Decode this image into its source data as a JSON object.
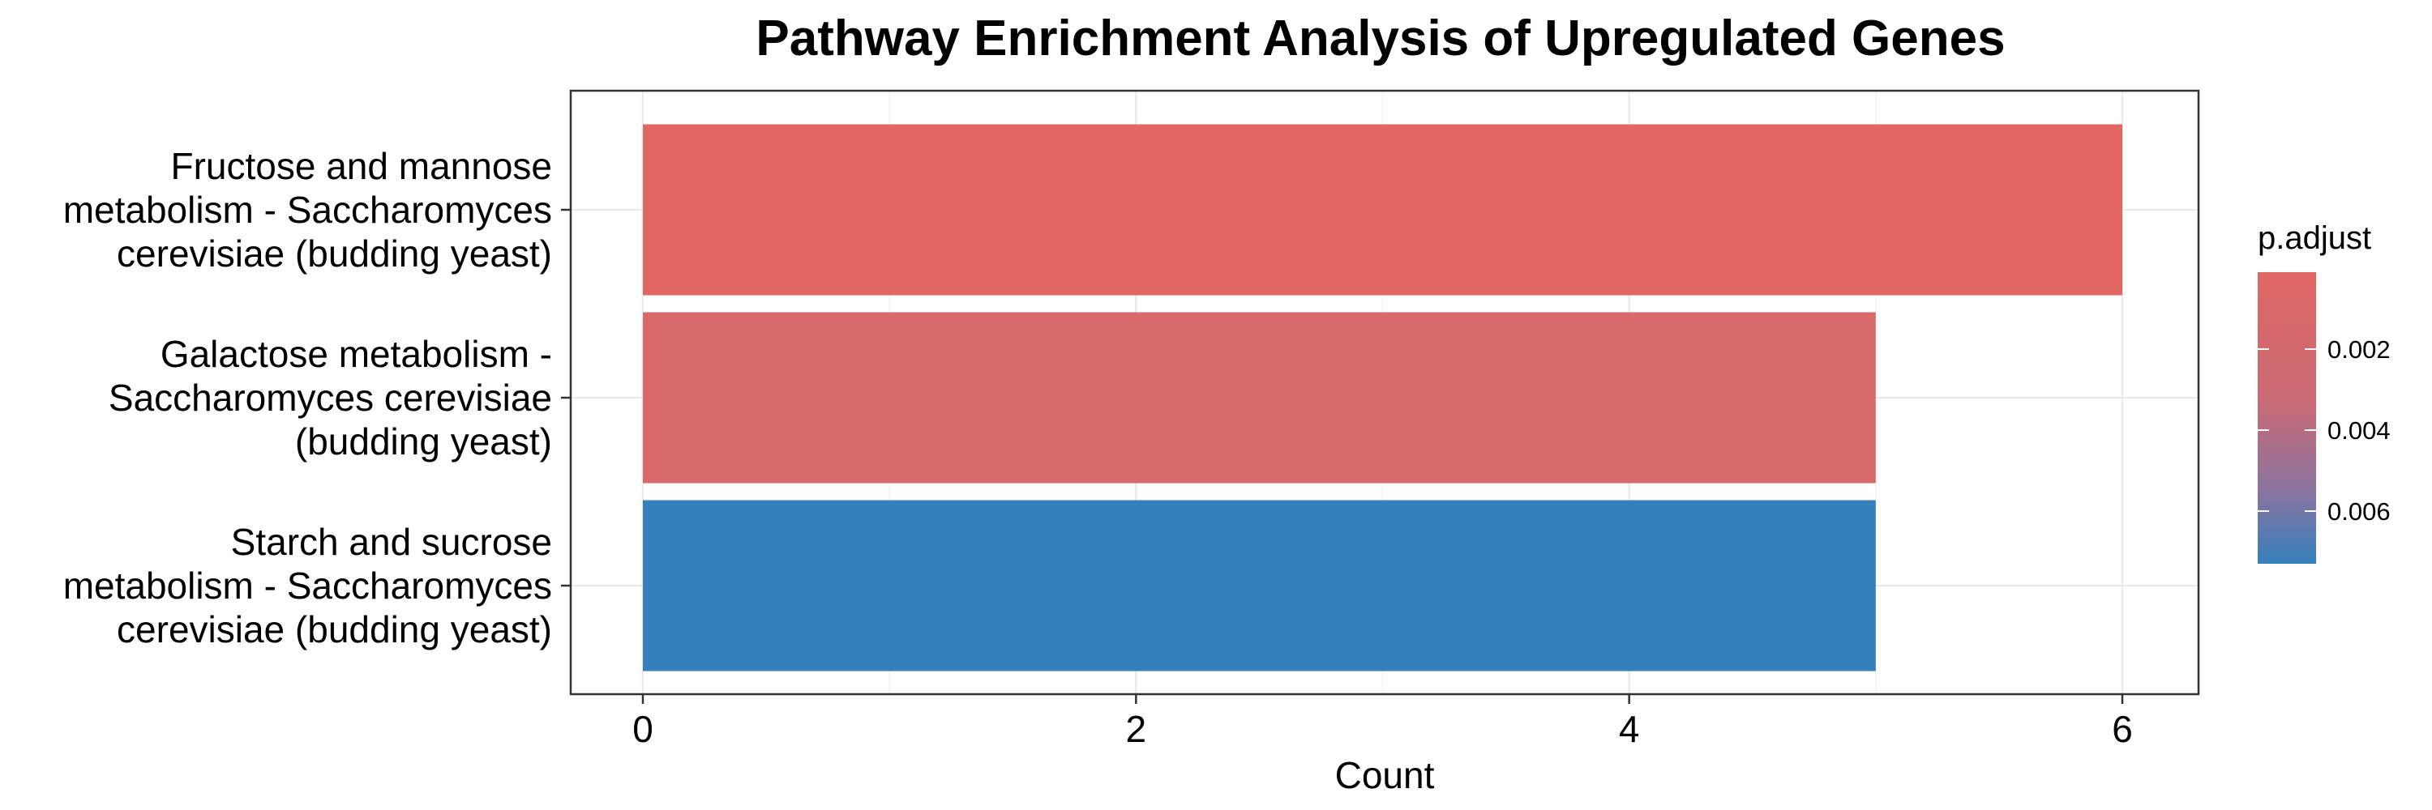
{
  "chart_data": {
    "type": "bar",
    "orientation": "horizontal",
    "title": "Pathway Enrichment Analysis of Upregulated Genes",
    "xlabel": "Count",
    "ylabel": "",
    "xlim": [
      0,
      6.3
    ],
    "x_ticks": [
      "0",
      "2",
      "4",
      "6"
    ],
    "x_tick_values": [
      0,
      2,
      4,
      6
    ],
    "categories": [
      [
        "Fructose and mannose",
        "metabolism - Saccharomyces",
        "cerevisiae (budding yeast)"
      ],
      [
        "Galactose metabolism -",
        "Saccharomyces cerevisiae",
        "(budding yeast)"
      ],
      [
        "Starch and sucrose",
        "metabolism - Saccharomyces",
        "cerevisiae (budding yeast)"
      ]
    ],
    "values": [
      6,
      5,
      5
    ],
    "p_adjust": [
      0.0001,
      0.0007,
      0.0073
    ],
    "bar_colors": [
      "#E06764",
      "#D96A6B",
      "#3580BC"
    ],
    "grid": true,
    "legend": {
      "title": "p.adjust",
      "position": "right",
      "ticks": [
        "0.002",
        "0.004",
        "0.006"
      ],
      "tick_values": [
        0.002,
        0.004,
        0.006
      ],
      "range": [
        0.0001,
        0.0073
      ],
      "color_low": "#E06764",
      "color_high": "#3580BC"
    }
  }
}
